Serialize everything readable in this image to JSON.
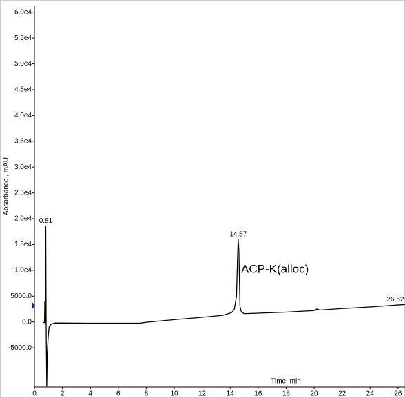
{
  "chart_data": {
    "type": "line",
    "ylabel": "Absorbance , mAU",
    "xlabel": "Time, min",
    "annotation": "ACP-K(alloc)",
    "xlim": [
      0,
      26.5
    ],
    "ylim": [
      -12600,
      61300
    ],
    "xticks": [
      0,
      2,
      4,
      6,
      8,
      10,
      12,
      14,
      16,
      18,
      20,
      22,
      24,
      26
    ],
    "yticks": [
      {
        "value": -5000,
        "label": "-5000.0"
      },
      {
        "value": 0,
        "label": "0.0"
      },
      {
        "value": 5000,
        "label": "5000.0"
      },
      {
        "value": 10000,
        "label": "1.0e4"
      },
      {
        "value": 15000,
        "label": "1.5e4"
      },
      {
        "value": 20000,
        "label": "2.0e4"
      },
      {
        "value": 25000,
        "label": "2.5e4"
      },
      {
        "value": 30000,
        "label": "3.0e4"
      },
      {
        "value": 35000,
        "label": "3.5e4"
      },
      {
        "value": 40000,
        "label": "4.0e4"
      },
      {
        "value": 45000,
        "label": "4.5e4"
      },
      {
        "value": 50000,
        "label": "5.0e4"
      },
      {
        "value": 55000,
        "label": "5.5e4"
      },
      {
        "value": 60000,
        "label": "6.0e4"
      }
    ],
    "color": "#000000",
    "x": [
      0.6,
      0.72,
      0.74,
      0.76,
      0.79,
      0.81,
      0.84,
      0.88,
      0.92,
      0.98,
      1.05,
      1.2,
      1.5,
      4,
      7.5,
      8,
      10,
      12,
      13.5,
      14.1,
      14.3,
      14.45,
      14.52,
      14.57,
      14.62,
      14.7,
      14.8,
      15,
      16,
      18,
      20,
      20.2,
      20.4,
      22,
      24,
      26.52
    ],
    "values": [
      -100,
      -100,
      4000,
      -300,
      -200,
      18600,
      -2000,
      -12500,
      -6000,
      -3000,
      -1000,
      -400,
      -200,
      -250,
      -250,
      -50,
      450,
      900,
      1300,
      1800,
      2500,
      5000,
      12000,
      16000,
      14000,
      3000,
      1900,
      1600,
      1700,
      1900,
      2200,
      2500,
      2300,
      2600,
      2900,
      3400
    ],
    "peaks": [
      {
        "x": 0.81,
        "y": 18600
      },
      {
        "x": 14.57,
        "y": 16000
      },
      {
        "x": 26.52,
        "y": 3400
      }
    ]
  }
}
